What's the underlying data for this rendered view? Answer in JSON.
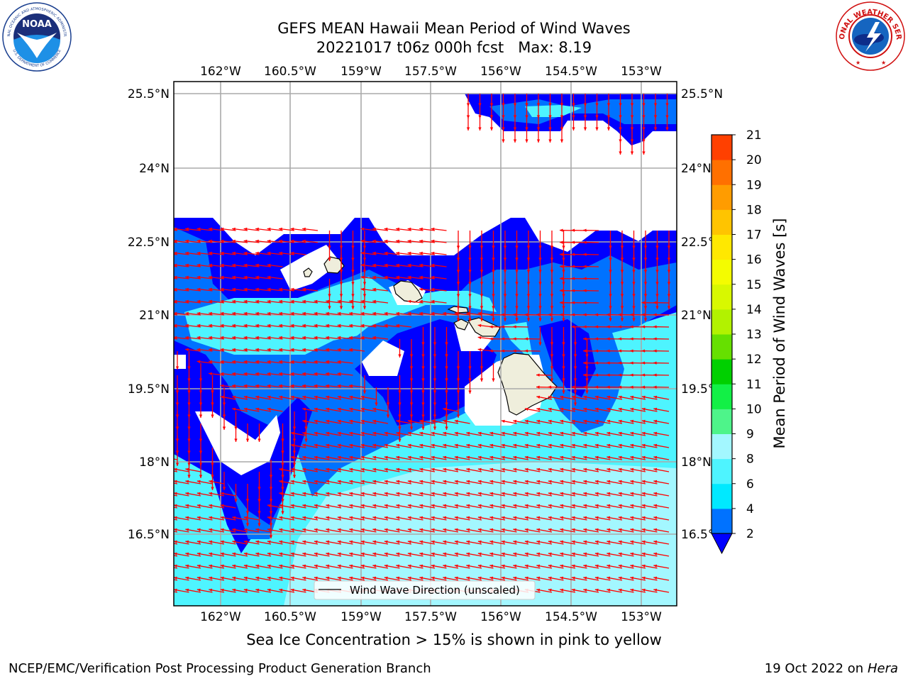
{
  "header": {
    "title_line1": "GEFS MEAN Hawaii Mean Period of Wind Waves",
    "title_line2": "20221017 t06z 000h fcst   Max: 8.19"
  },
  "logos": {
    "left": "noaa-logo",
    "right": "national-weather-service-logo",
    "noaa_text": "NOAA",
    "noaa_ring_top": "NATIONAL OCEANIC AND ATMOSPHERIC ADMINISTRATION",
    "noaa_ring_bottom": "U.S. DEPARTMENT OF COMMERCE",
    "nws_ring": "NATIONAL WEATHER SERVICE"
  },
  "map": {
    "lon_ticks": [
      "162°W",
      "160.5°W",
      "159°W",
      "157.5°W",
      "156°W",
      "154.5°W",
      "153°W"
    ],
    "lat_ticks": [
      "25.5°N",
      "24°N",
      "22.5°N",
      "21°N",
      "19.5°N",
      "18°N",
      "16.5°N"
    ],
    "legend_label": "Wind Wave Direction (unscaled)",
    "arrow_color": "#ff0000",
    "coast_color": "#000000",
    "land_color": "#efeedc"
  },
  "colorbar": {
    "label": "Mean Period of Wind Waves [s]",
    "ticks": [
      "2",
      "4",
      "6",
      "8",
      "9",
      "10",
      "11",
      "12",
      "13",
      "14",
      "15",
      "16",
      "17",
      "18",
      "19",
      "20",
      "21"
    ],
    "colors": [
      "#0072ff",
      "#00e9ff",
      "#4ef4ff",
      "#a3f7ff",
      "#4ef48a",
      "#12f046",
      "#00d000",
      "#66e000",
      "#b2f200",
      "#d8f800",
      "#f4fc00",
      "#ffe800",
      "#ffc400",
      "#ff9c00",
      "#ff7000",
      "#ff4000",
      "#ff0000"
    ],
    "under_color": "#0000ff"
  },
  "note": "Sea Ice Concentration > 15% is shown in pink to yellow",
  "footer": {
    "left": "NCEP/EMC/Verification Post Processing Product Generation Branch",
    "right_date": "19 Oct 2022 on ",
    "right_host": "Hera"
  }
}
